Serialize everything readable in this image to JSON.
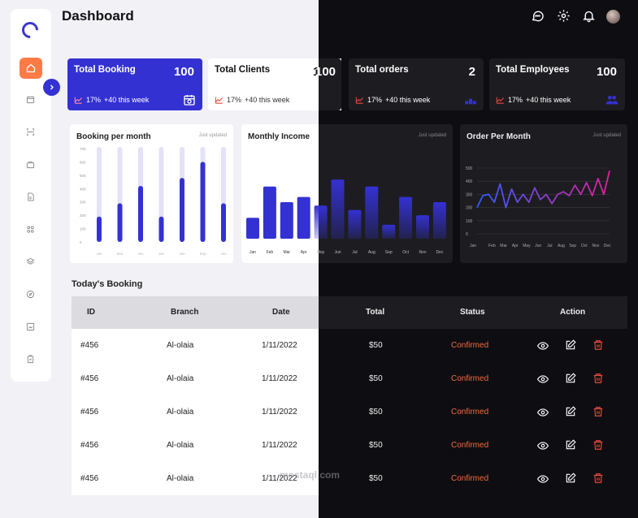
{
  "header": {
    "title": "Dashboard"
  },
  "stats": [
    {
      "label": "Total Booking",
      "value": "100",
      "trend": "17%",
      "trend_note": "+40 this week",
      "icon": "calendar-icon"
    },
    {
      "label": "Total Clients",
      "value": "100",
      "trend": "17%",
      "trend_note": "+40 this week",
      "icon": "users-icon"
    },
    {
      "label": "Total orders",
      "value": "2",
      "trend": "17%",
      "trend_note": "+40 this week",
      "icon": "boxes-icon"
    },
    {
      "label": "Total Employees",
      "value": "100",
      "trend": "17%",
      "trend_note": "+40 this week",
      "icon": "users-icon"
    }
  ],
  "panels": {
    "booking": {
      "title": "Booking per month",
      "updated": "Just updated"
    },
    "income": {
      "title": "Monthly Income",
      "updated": "Just updated"
    },
    "orders": {
      "title": "Order Per Month",
      "updated": "Just updated"
    }
  },
  "chart_data": [
    {
      "type": "bar",
      "title": "Booking per month",
      "ylim": [
        0,
        700
      ],
      "yticks": [
        "700",
        "600",
        "500",
        "400",
        "300",
        "200",
        "100",
        "0"
      ],
      "categories": [
        "Jan",
        "Mar",
        "Jan",
        "Jan",
        "Jan",
        "Sep",
        "Jan"
      ],
      "values": [
        190,
        290,
        420,
        190,
        480,
        600,
        290
      ]
    },
    {
      "type": "bar",
      "title": "Monthly Income",
      "categories": [
        "Jan",
        "Feb",
        "Mar",
        "Apr",
        "May",
        "Jun",
        "Jul",
        "Aug",
        "Sep",
        "Oct",
        "Nov",
        "Dec"
      ],
      "values": [
        24,
        60,
        42,
        48,
        38,
        68,
        33,
        60,
        16,
        48,
        27,
        42
      ]
    },
    {
      "type": "line",
      "title": "Order Per Month",
      "ylim": [
        0,
        500
      ],
      "yticks": [
        "500",
        "400",
        "300",
        "200",
        "100",
        "0"
      ],
      "categories": [
        "Jan",
        "Feb",
        "Mar",
        "Apr",
        "May",
        "Jun",
        "Jul",
        "Aug",
        "Sep",
        "Oct",
        "Nov",
        "Dec"
      ],
      "x": [
        0,
        0.5,
        1,
        1.5,
        2,
        2.5,
        3,
        3.5,
        4,
        4.5,
        5,
        5.5,
        6,
        6.5,
        7,
        7.5,
        8,
        8.5,
        9,
        9.5,
        10,
        10.5,
        11,
        11.5
      ],
      "values": [
        200,
        290,
        300,
        240,
        380,
        200,
        340,
        240,
        300,
        240,
        350,
        260,
        300,
        230,
        300,
        320,
        290,
        370,
        300,
        390,
        290,
        420,
        300,
        480
      ]
    }
  ],
  "table": {
    "title": "Today's Booking",
    "columns": [
      "ID",
      "Branch",
      "Date",
      "Total",
      "Status",
      "Action"
    ],
    "rows": [
      {
        "id": "#456",
        "branch": "Al-olaia",
        "date": "1/11/2022",
        "total": "$50",
        "status": "Confirmed"
      },
      {
        "id": "#456",
        "branch": "Al-olaia",
        "date": "1/11/2022",
        "total": "$50",
        "status": "Confirmed"
      },
      {
        "id": "#456",
        "branch": "Al-olaia",
        "date": "1/11/2022",
        "total": "$50",
        "status": "Confirmed"
      },
      {
        "id": "#456",
        "branch": "Al-olaia",
        "date": "1/11/2022",
        "total": "$50",
        "status": "Confirmed"
      },
      {
        "id": "#456",
        "branch": "Al-olaia",
        "date": "1/11/2022",
        "total": "$50",
        "status": "Confirmed"
      }
    ]
  },
  "watermark": "mostaql.com",
  "colors": {
    "accent": "#3431d3",
    "orange": "#ff7a45",
    "status": "#f06a3c",
    "danger": "#e8483c",
    "line_start": "#2f5cff",
    "line_end": "#e0209a"
  }
}
